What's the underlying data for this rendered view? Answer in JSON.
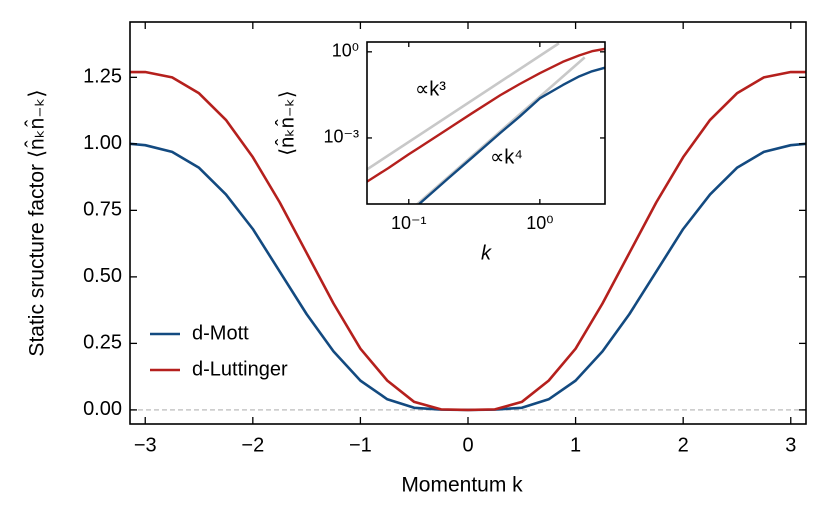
{
  "chart_data": [
    {
      "type": "line",
      "xlabel": "Momentum k",
      "ylabel": "Static sructure factor ⟨n̂ₖn̂₋ₖ⟩",
      "x": [
        -3.1416,
        -3,
        -2.75,
        -2.5,
        -2.25,
        -2,
        -1.75,
        -1.5,
        -1.25,
        -1,
        -0.75,
        -0.5,
        -0.25,
        0,
        0.25,
        0.5,
        0.75,
        1,
        1.25,
        1.5,
        1.75,
        2,
        2.25,
        2.5,
        2.75,
        3,
        3.1416
      ],
      "series": [
        {
          "name": "d-Mott",
          "color": "#134a80",
          "values": [
            1.0,
            0.995,
            0.97,
            0.91,
            0.81,
            0.68,
            0.52,
            0.36,
            0.22,
            0.11,
            0.04,
            0.008,
            0.001,
            0,
            0.001,
            0.008,
            0.04,
            0.11,
            0.22,
            0.36,
            0.52,
            0.68,
            0.81,
            0.91,
            0.97,
            0.995,
            1.0
          ]
        },
        {
          "name": "d-Luttinger",
          "color": "#b5201d",
          "values": [
            1.27,
            1.27,
            1.25,
            1.19,
            1.09,
            0.95,
            0.78,
            0.59,
            0.4,
            0.23,
            0.11,
            0.03,
            0.002,
            0,
            0.002,
            0.03,
            0.11,
            0.23,
            0.4,
            0.59,
            0.78,
            0.95,
            1.09,
            1.19,
            1.25,
            1.27,
            1.27
          ]
        }
      ],
      "xlim": [
        -3.1416,
        3.1416
      ],
      "xticks": [
        {
          "value": -3,
          "label": "−3"
        },
        {
          "value": -2,
          "label": "−2"
        },
        {
          "value": -1,
          "label": "−1"
        },
        0,
        1,
        2,
        3
      ],
      "ylim": [
        -0.053,
        1.458
      ],
      "yticks": [
        {
          "value": 0,
          "label": "0.00"
        },
        {
          "value": 0.25,
          "label": "0.25"
        },
        {
          "value": 0.5,
          "label": "0.50"
        },
        {
          "value": 0.75,
          "label": "0.75"
        },
        {
          "value": 1,
          "label": "1.00"
        },
        {
          "value": 1.25,
          "label": "1.25"
        }
      ],
      "hline": 0,
      "legend": "lower left"
    },
    {
      "type": "line",
      "xlabel": "k",
      "ylabel": "⟨n̂ₖn̂₋ₖ⟩",
      "log_x": true,
      "log_y": true,
      "x": [
        0.048,
        0.07,
        0.1,
        0.12,
        0.2,
        0.3,
        0.5,
        0.7,
        1,
        1.5,
        2,
        2.5,
        3.1416
      ],
      "series": [
        {
          "name": "d-Mott",
          "color": "#134a80",
          "values": [
            null,
            null,
            null,
            5e-06,
            3.9e-05,
            0.000195,
            0.0015,
            0.0055,
            0.024,
            0.07,
            0.14,
            0.21,
            0.28
          ]
        },
        {
          "name": "d-Luttinger",
          "color": "#b5201d",
          "values": [
            3e-05,
            9e-05,
            0.00027,
            0.00046,
            0.0021,
            0.007,
            0.031,
            0.075,
            0.18,
            0.45,
            0.75,
            1.05,
            1.27
          ]
        }
      ],
      "guides": [
        {
          "label": "∝k³",
          "color": "#c8c8c8",
          "x": [
            0.048,
            1.4
          ],
          "values": [
            8e-05,
            1.99
          ]
        },
        {
          "label": "∝k⁴",
          "color": "#c8c8c8",
          "x": [
            0.11,
            2.2
          ],
          "values": [
            4e-06,
            0.64
          ]
        }
      ],
      "xlim": [
        0.048,
        3.1416
      ],
      "xticks": [
        {
          "value": 0.1,
          "label": "10⁻¹"
        },
        {
          "value": 1,
          "label": "10⁰"
        }
      ],
      "ylim": [
        5e-06,
        2.2
      ],
      "yticks": [
        {
          "value": 0.001,
          "label": "10⁻³"
        },
        {
          "value": 1,
          "label": "10⁰"
        }
      ]
    }
  ]
}
